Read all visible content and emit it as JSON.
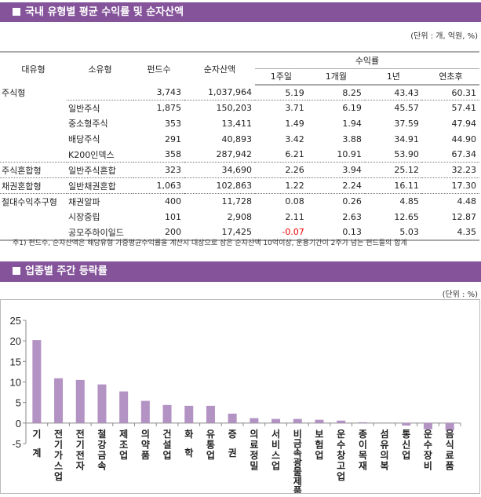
{
  "section1": {
    "title": "국내 유형별 평균 수익률 및 순자산액",
    "unit": "(단위 : 개, 억원, %)",
    "headers": {
      "major": "대유형",
      "minor": "소유형",
      "funds": "펀드수",
      "assets": "순자산액",
      "returns": "수익률",
      "w1": "1주일",
      "m1": "1개월",
      "y1": "1년",
      "ytd": "연초후"
    },
    "rows": [
      [
        "주식형",
        "",
        "3,743",
        "1,037,964",
        "5.19",
        "8.25",
        "43.43",
        "60.31"
      ],
      [
        "",
        "일반주식",
        "1,875",
        "150,203",
        "3.71",
        "6.19",
        "45.57",
        "57.41"
      ],
      [
        "",
        "중소형주식",
        "353",
        "13,411",
        "1.49",
        "1.94",
        "37.59",
        "47.94"
      ],
      [
        "",
        "배당주식",
        "291",
        "40,893",
        "3.42",
        "3.88",
        "34.91",
        "44.90"
      ],
      [
        "",
        "K200인덱스",
        "358",
        "287,942",
        "6.21",
        "10.91",
        "53.90",
        "67.34"
      ],
      [
        "주식혼합형",
        "일반주식혼합",
        "323",
        "34,690",
        "2.26",
        "3.94",
        "25.12",
        "32.23"
      ],
      [
        "채권혼합형",
        "일반채권혼합",
        "1,063",
        "102,863",
        "1.22",
        "2.24",
        "16.11",
        "17.30"
      ],
      [
        "절대수익추구형",
        "채권알파",
        "400",
        "11,728",
        "0.08",
        "0.26",
        "4.85",
        "4.48"
      ],
      [
        "",
        "시장중립",
        "101",
        "2,908",
        "2.11",
        "2.63",
        "12.65",
        "12.87"
      ],
      [
        "",
        "공모주하이일드",
        "200",
        "17,425",
        "-0.07",
        "0.13",
        "5.03",
        "4.35"
      ]
    ],
    "note": "주1) 펀드수, 순자산액은 해당유형 가중평균수익률을 계산시 대상으로 삼은 순자산액 10억이상, 운용기간이 2주가 넘는 펀드들의 합계",
    "negative_color": "#e00000"
  },
  "section2": {
    "title": "업종별 주간 등락률",
    "unit": "(단위 : %)"
  },
  "chart_data": {
    "type": "bar",
    "ylim": [
      -5,
      25
    ],
    "yticks": [
      25,
      20,
      15,
      10,
      5,
      0,
      -5
    ],
    "bar_color": "#b392c4",
    "categories": [
      "기계",
      "전기가스업",
      "전기전자",
      "철강금속",
      "제조업",
      "의약품",
      "건설업",
      "화학",
      "유통업",
      "증권",
      "의료정밀",
      "서비스업",
      "비금속광물제품",
      "보험업",
      "운수창고업",
      "종이목재",
      "섬유의복",
      "통신업",
      "운수장비",
      "음식료품"
    ],
    "values": [
      20.2,
      10.9,
      10.5,
      9.4,
      7.7,
      5.4,
      4.4,
      4.2,
      4.2,
      2.3,
      1.2,
      1.0,
      1.0,
      0.8,
      0.6,
      0.2,
      0.0,
      -0.6,
      -1.5,
      -1.8
    ]
  }
}
